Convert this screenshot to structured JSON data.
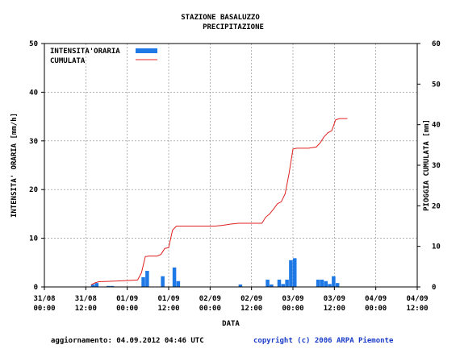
{
  "header": {
    "title_line1": "STAZIONE BASALUZZO",
    "title_line2": "PRECIPITAZIONE"
  },
  "footer": {
    "updated": "aggiornamento: 04.09.2012 04:46 UTC",
    "copyright": "copyright (c) 2006 ARPA Piemonte"
  },
  "colors": {
    "bars": "#1e78e6",
    "line": "#e02020",
    "grid": "#888888"
  },
  "chart_data": {
    "type": "bar+line",
    "title": "STAZIONE BASALUZZO PRECIPITAZIONE",
    "xlabel": "DATA",
    "ylabel_left": "INTENSITA' ORARIA [mm/h]",
    "ylabel_right": "PIOGGIA CUMULATA [mm]",
    "xlim_hours": [
      0,
      96
    ],
    "ylim_left": [
      0,
      50
    ],
    "ylim_right": [
      0,
      60
    ],
    "grid": true,
    "legend_position": "top-left",
    "x_tick_labels": [
      [
        "31/08",
        "00:00"
      ],
      [
        "31/08",
        "12:00"
      ],
      [
        "01/09",
        "00:00"
      ],
      [
        "01/09",
        "12:00"
      ],
      [
        "02/09",
        "00:00"
      ],
      [
        "02/09",
        "12:00"
      ],
      [
        "03/09",
        "00:00"
      ],
      [
        "03/09",
        "12:00"
      ],
      [
        "04/09",
        "00:00"
      ],
      [
        "04/09",
        "12:00"
      ]
    ],
    "y_left_ticks": [
      "0",
      "10",
      "20",
      "30",
      "40",
      "50"
    ],
    "y_right_ticks": [
      "0",
      "10",
      "20",
      "30",
      "40",
      "50",
      "60"
    ],
    "series": [
      {
        "name": "INTENSITA'ORARIA",
        "kind": "bar",
        "x_hour": [
          12,
          13,
          16,
          17,
          25,
          26,
          30,
          33,
          34,
          50,
          57,
          58,
          60,
          61,
          62,
          63,
          64,
          70,
          71,
          72,
          73,
          74,
          75
        ],
        "values": [
          0.5,
          0.8,
          0.2,
          0.2,
          2.0,
          3.3,
          2.2,
          4.0,
          1.2,
          0.5,
          1.5,
          0.5,
          1.5,
          0.6,
          1.5,
          5.5,
          5.9,
          1.5,
          1.5,
          1.2,
          0.6,
          2.2,
          0.8
        ]
      },
      {
        "name": "CUMULATA",
        "kind": "line",
        "x_hour": [
          12,
          13,
          14,
          20,
          24,
          25,
          26,
          27,
          29,
          30,
          31,
          32,
          33,
          34,
          35,
          40,
          44,
          46,
          48,
          50,
          52,
          56,
          57,
          58,
          59,
          60,
          61,
          62,
          63,
          64,
          65,
          68,
          70,
          71,
          72,
          73,
          74,
          75,
          76,
          77,
          78
        ],
        "values": [
          0.5,
          1.0,
          1.3,
          1.5,
          1.7,
          3.5,
          7.5,
          7.6,
          7.6,
          8.0,
          9.5,
          9.7,
          14.0,
          15.0,
          15.0,
          15.0,
          15.0,
          15.2,
          15.5,
          15.7,
          15.7,
          15.7,
          17.2,
          18.0,
          19.2,
          20.5,
          21.0,
          23.0,
          28.0,
          34.0,
          34.2,
          34.2,
          34.5,
          35.5,
          37.0,
          38.0,
          38.5,
          41.2,
          41.5,
          41.5,
          41.5
        ]
      }
    ]
  }
}
